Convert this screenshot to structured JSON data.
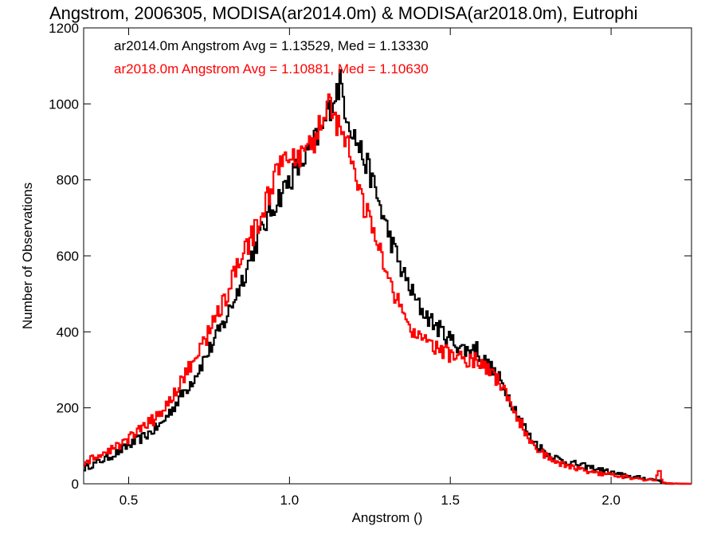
{
  "chart_data": {
    "type": "line",
    "title": "Angstrom, 2006305, MODISA(ar2014.0m) & MODISA(ar2018.0m), Eutrophi",
    "xlabel": "Angstrom ()",
    "ylabel": "Number of Observations",
    "xlim": [
      0.36,
      2.25
    ],
    "ylim": [
      0,
      1200
    ],
    "xticks": [
      0.5,
      1.0,
      1.5,
      2.0
    ],
    "xtick_labels": [
      "0.5",
      "1.0",
      "1.5",
      "2.0"
    ],
    "yticks": [
      0,
      200,
      400,
      600,
      800,
      1000,
      1200
    ],
    "ytick_labels": [
      "0",
      "200",
      "400",
      "600",
      "800",
      "1000",
      "1200"
    ],
    "step": "histogram",
    "grid": false,
    "legend": "top-left",
    "annotations": [
      {
        "text": "ar2014.0m Angstrom Avg = 1.13529, Med = 1.13330",
        "color": "#000000"
      },
      {
        "text": "ar2018.0m Angstrom Avg = 1.10881, Med = 1.10630",
        "color": "#ff0000"
      }
    ],
    "series": [
      {
        "color": "#000000",
        "x": [
          0.36,
          0.4,
          0.45,
          0.5,
          0.55,
          0.6,
          0.65,
          0.7,
          0.75,
          0.8,
          0.85,
          0.9,
          0.95,
          1.0,
          1.05,
          1.1,
          1.13,
          1.15,
          1.16,
          1.17,
          1.2,
          1.25,
          1.3,
          1.35,
          1.4,
          1.45,
          1.5,
          1.55,
          1.58,
          1.6,
          1.65,
          1.7,
          1.75,
          1.8,
          1.85,
          1.9,
          1.95,
          2.0,
          2.05,
          2.1,
          2.14,
          2.15,
          2.16,
          2.2,
          2.25
        ],
        "y": [
          40,
          55,
          75,
          100,
          125,
          155,
          215,
          275,
          350,
          430,
          530,
          640,
          730,
          800,
          860,
          930,
          1000,
          1040,
          1060,
          1000,
          920,
          820,
          680,
          560,
          470,
          420,
          380,
          350,
          360,
          330,
          280,
          200,
          120,
          80,
          60,
          50,
          40,
          30,
          20,
          15,
          10,
          10,
          2,
          0,
          0
        ]
      },
      {
        "color": "#ff0000",
        "x": [
          0.36,
          0.4,
          0.45,
          0.5,
          0.55,
          0.6,
          0.65,
          0.7,
          0.75,
          0.8,
          0.85,
          0.9,
          0.95,
          0.98,
          1.0,
          1.05,
          1.08,
          1.1,
          1.12,
          1.15,
          1.17,
          1.2,
          1.25,
          1.3,
          1.35,
          1.4,
          1.45,
          1.5,
          1.55,
          1.6,
          1.65,
          1.7,
          1.75,
          1.8,
          1.85,
          1.9,
          1.95,
          2.0,
          2.05,
          2.1,
          2.14,
          2.15,
          2.16,
          2.2,
          2.25
        ],
        "y": [
          55,
          70,
          90,
          120,
          150,
          185,
          250,
          320,
          400,
          490,
          590,
          680,
          790,
          860,
          840,
          870,
          900,
          970,
          1000,
          950,
          930,
          810,
          690,
          560,
          450,
          380,
          360,
          340,
          330,
          320,
          270,
          190,
          110,
          70,
          50,
          40,
          30,
          25,
          18,
          12,
          8,
          50,
          2,
          0,
          0
        ]
      }
    ]
  }
}
